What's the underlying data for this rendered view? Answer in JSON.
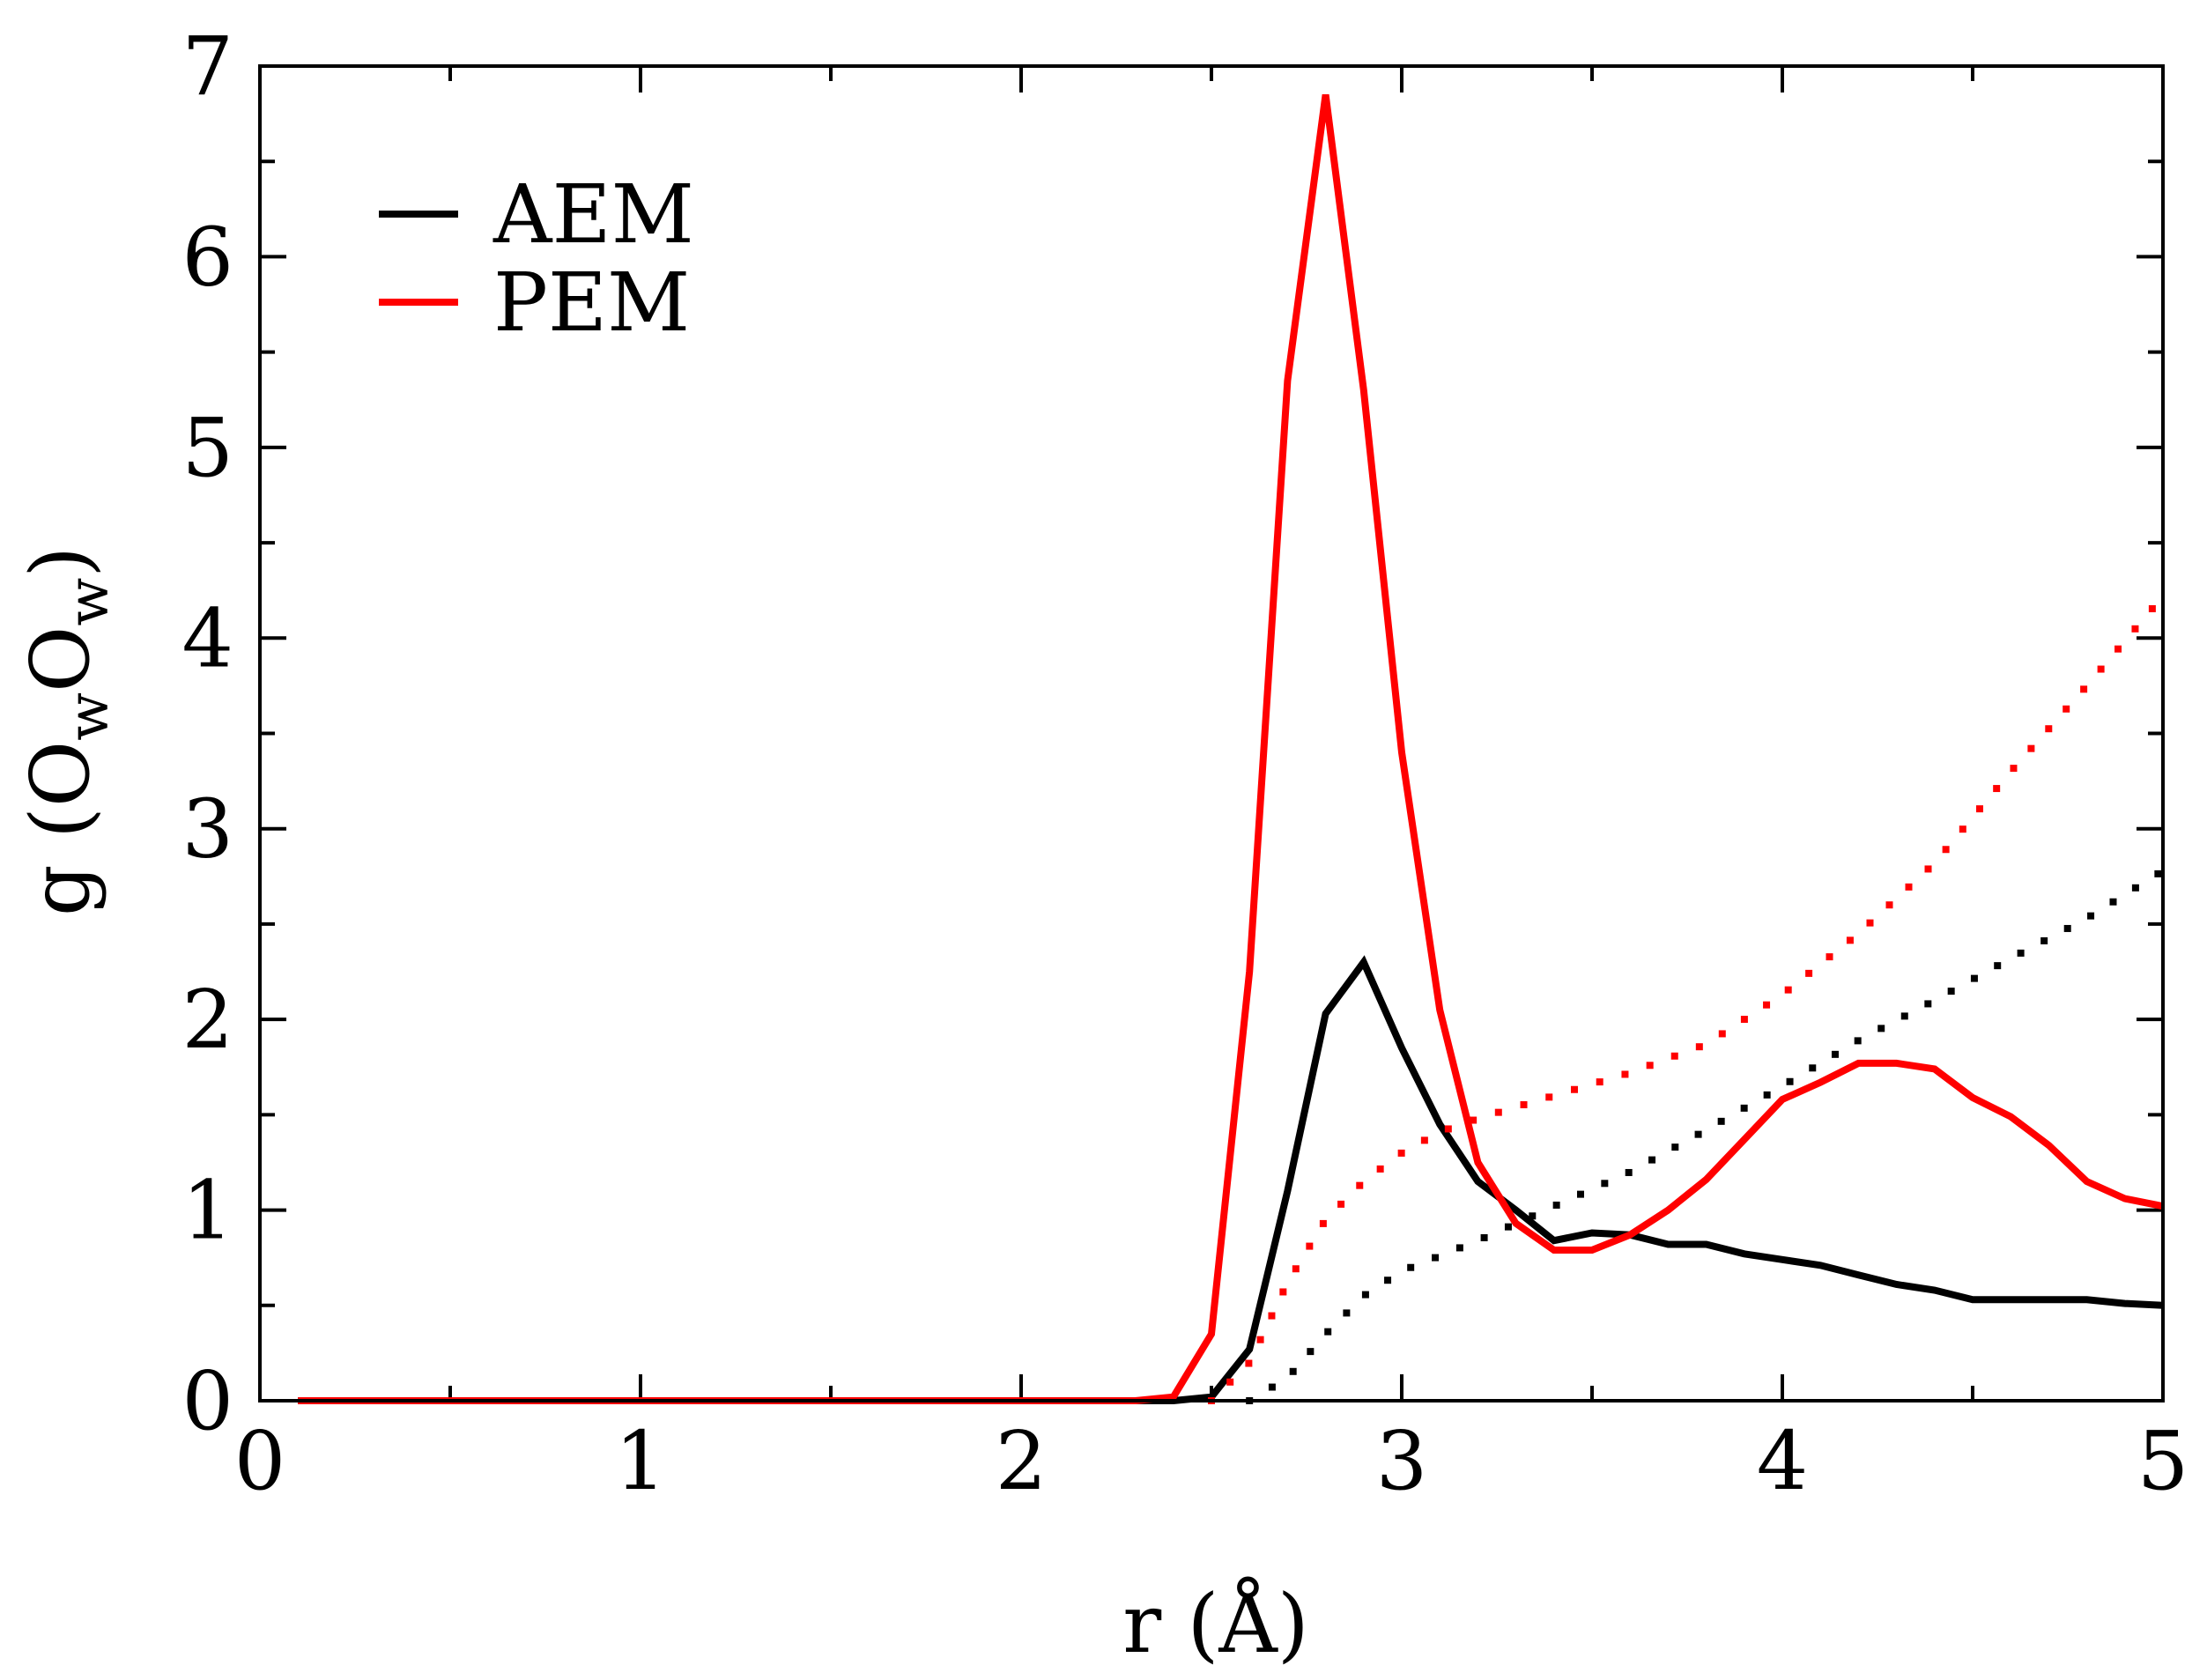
{
  "chart_data": {
    "type": "line",
    "title": "",
    "xlabel": "r (Å)",
    "ylabel": {
      "prefix": "g (O",
      "sub1": "w",
      "mid": "O",
      "sub2": "w",
      "suffix": ")"
    },
    "xlim": [
      0,
      5
    ],
    "ylim": [
      0,
      7
    ],
    "xticks": [
      0,
      1,
      2,
      3,
      4,
      5
    ],
    "yticks": [
      0,
      1,
      2,
      3,
      4,
      5,
      6,
      7
    ],
    "xticks_minor": [
      0.5,
      1.5,
      2.5,
      3.5,
      4.5
    ],
    "yticks_minor": [
      0.5,
      1.5,
      2.5,
      3.5,
      4.5,
      5.5,
      6.5
    ],
    "grid": false,
    "legend_position": "top-left",
    "legend": [
      {
        "label": "AEM",
        "color": "#000000"
      },
      {
        "label": "PEM",
        "color": "#ff0000"
      }
    ],
    "series": [
      {
        "name": "AEM",
        "style": "solid",
        "color": "#000000",
        "x": [
          0.1,
          0.5,
          1.0,
          1.5,
          2.0,
          2.3,
          2.4,
          2.5,
          2.6,
          2.7,
          2.8,
          2.9,
          3.0,
          3.1,
          3.2,
          3.3,
          3.4,
          3.5,
          3.6,
          3.7,
          3.8,
          3.9,
          4.0,
          4.1,
          4.2,
          4.3,
          4.4,
          4.5,
          4.6,
          4.7,
          4.8,
          4.9,
          5.0
        ],
        "y": [
          0,
          0,
          0,
          0,
          0,
          0,
          0,
          0.02,
          0.27,
          1.1,
          2.03,
          2.3,
          1.85,
          1.45,
          1.15,
          1.0,
          0.84,
          0.88,
          0.87,
          0.82,
          0.82,
          0.77,
          0.74,
          0.71,
          0.66,
          0.61,
          0.58,
          0.53,
          0.53,
          0.53,
          0.53,
          0.51,
          0.5
        ]
      },
      {
        "name": "PEM",
        "style": "solid",
        "color": "#ff0000",
        "x": [
          0.1,
          0.5,
          1.0,
          1.5,
          2.0,
          2.3,
          2.4,
          2.5,
          2.6,
          2.7,
          2.8,
          2.9,
          3.0,
          3.1,
          3.2,
          3.3,
          3.4,
          3.5,
          3.6,
          3.7,
          3.8,
          3.9,
          4.0,
          4.1,
          4.2,
          4.3,
          4.4,
          4.5,
          4.6,
          4.7,
          4.8,
          4.9,
          5.0
        ],
        "y": [
          0,
          0,
          0,
          0,
          0,
          0,
          0.02,
          0.35,
          2.25,
          5.35,
          6.85,
          5.3,
          3.4,
          2.05,
          1.25,
          0.93,
          0.79,
          0.79,
          0.87,
          1.0,
          1.16,
          1.37,
          1.58,
          1.67,
          1.77,
          1.77,
          1.74,
          1.59,
          1.49,
          1.34,
          1.15,
          1.06,
          1.02
        ]
      },
      {
        "name": "AEM (dotted)",
        "style": "dotted",
        "color": "#000000",
        "x": [
          2.6,
          2.7,
          2.8,
          2.9,
          3.0,
          3.2,
          3.4,
          3.6,
          3.8,
          4.0,
          4.2,
          4.4,
          4.6,
          4.8,
          5.0
        ],
        "y": [
          0.0,
          0.12,
          0.35,
          0.55,
          0.68,
          0.84,
          1.02,
          1.2,
          1.42,
          1.65,
          1.89,
          2.1,
          2.32,
          2.53,
          2.78
        ]
      },
      {
        "name": "PEM (dotted)",
        "style": "dotted",
        "color": "#ff0000",
        "x": [
          2.5,
          2.6,
          2.7,
          2.8,
          2.9,
          3.0,
          3.1,
          3.2,
          3.4,
          3.6,
          3.8,
          4.0,
          4.2,
          4.4,
          4.6,
          4.8,
          5.0
        ],
        "y": [
          0.0,
          0.2,
          0.62,
          0.95,
          1.15,
          1.3,
          1.41,
          1.48,
          1.6,
          1.72,
          1.87,
          2.13,
          2.45,
          2.82,
          3.3,
          3.75,
          4.22
        ]
      }
    ]
  }
}
